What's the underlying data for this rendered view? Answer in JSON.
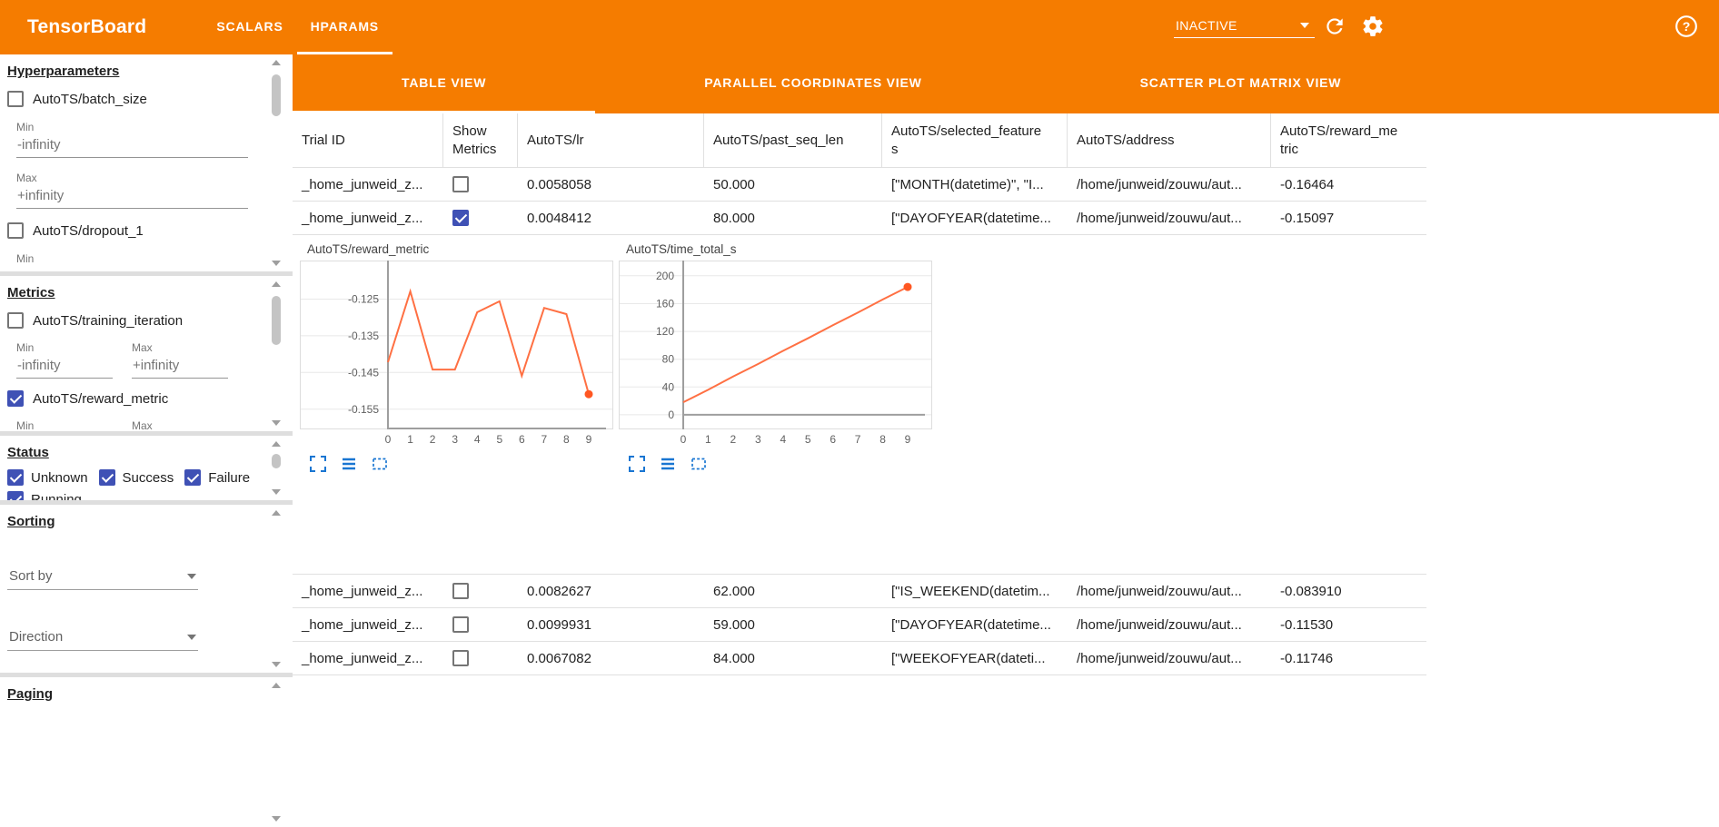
{
  "topbar": {
    "title": "TensorBoard",
    "tabs": [
      {
        "label": "SCALARS",
        "active": false
      },
      {
        "label": "HPARAMS",
        "active": true
      }
    ],
    "reload_mode": "INACTIVE"
  },
  "icons": {
    "help_glyph": "?"
  },
  "colors": {
    "appbar_orange": "#f57c00",
    "checkbox_indigo": "#3f51b5",
    "chart_line_orange": "#ff7043",
    "chart_dot_orange": "#ff5722",
    "control_icon_blue": "#1976d2"
  },
  "sidebar": {
    "hyperparameters": {
      "heading": "Hyperparameters",
      "param1_label": "AutoTS/batch_size",
      "param1_checked": false,
      "min_label": "Min",
      "min_value": "-infinity",
      "max_label": "Max",
      "max_value": "+infinity",
      "param2_label": "AutoTS/dropout_1",
      "param2_checked": false,
      "min2_label": "Min"
    },
    "metrics": {
      "heading": "Metrics",
      "metric1_label": "AutoTS/training_iteration",
      "metric1_checked": false,
      "min_label": "Min",
      "min_value": "-infinity",
      "max_label": "Max",
      "max_value": "+infinity",
      "metric2_label": "AutoTS/reward_metric",
      "metric2_checked": true,
      "min2_label": "Min",
      "max2_label": "Max"
    },
    "status": {
      "heading": "Status",
      "options": [
        {
          "label": "Unknown",
          "checked": true
        },
        {
          "label": "Success",
          "checked": true
        },
        {
          "label": "Failure",
          "checked": true
        },
        {
          "label": "Running",
          "checked": true
        }
      ]
    },
    "sorting": {
      "heading": "Sorting",
      "sort_by_label": "Sort by",
      "direction_label": "Direction"
    },
    "paging": {
      "heading": "Paging"
    }
  },
  "main": {
    "view_tabs": [
      {
        "label": "TABLE VIEW",
        "active": true
      },
      {
        "label": "PARALLEL COORDINATES VIEW",
        "active": false
      },
      {
        "label": "SCATTER PLOT MATRIX VIEW",
        "active": false
      }
    ],
    "table": {
      "columns": [
        "Trial ID",
        "Show Metrics",
        "AutoTS/lr",
        "AutoTS/past_seq_len",
        "AutoTS/selected_features",
        "AutoTS/address",
        "AutoTS/reward_metric"
      ],
      "rows": [
        {
          "trial_id": "_home_junweid_z...",
          "show_metrics": false,
          "lr": "0.0058058",
          "past_seq_len": "50.000",
          "selected_features": "[\"MONTH(datetime)\", \"I...",
          "address": "/home/junweid/zouwu/aut...",
          "reward_metric": "-0.16464"
        },
        {
          "trial_id": "_home_junweid_z...",
          "show_metrics": true,
          "lr": "0.0048412",
          "past_seq_len": "80.000",
          "selected_features": "[\"DAYOFYEAR(datetime...",
          "address": "/home/junweid/zouwu/aut...",
          "reward_metric": "-0.15097"
        },
        {
          "trial_id": "_home_junweid_z...",
          "show_metrics": false,
          "lr": "0.0082627",
          "past_seq_len": "62.000",
          "selected_features": "[\"IS_WEEKEND(datetim...",
          "address": "/home/junweid/zouwu/aut...",
          "reward_metric": "-0.083910"
        },
        {
          "trial_id": "_home_junweid_z...",
          "show_metrics": false,
          "lr": "0.0099931",
          "past_seq_len": "59.000",
          "selected_features": "[\"DAYOFYEAR(datetime...",
          "address": "/home/junweid/zouwu/aut...",
          "reward_metric": "-0.11530"
        },
        {
          "trial_id": "_home_junweid_z...",
          "show_metrics": false,
          "lr": "0.0067082",
          "past_seq_len": "84.000",
          "selected_features": "[\"WEEKOFYEAR(dateti...",
          "address": "/home/junweid/zouwu/aut...",
          "reward_metric": "-0.11746"
        }
      ]
    }
  },
  "chart_data": [
    {
      "type": "line",
      "title": "AutoTS/reward_metric",
      "xlabel": "",
      "ylabel": "",
      "x": [
        0,
        1,
        2,
        3,
        4,
        5,
        6,
        7,
        8,
        9
      ],
      "values": [
        -0.1422,
        -0.1229,
        -0.1442,
        -0.1442,
        -0.1286,
        -0.1256,
        -0.1459,
        -0.1274,
        -0.1291,
        -0.1509
      ],
      "yticks": [
        -0.125,
        -0.135,
        -0.145,
        -0.155
      ],
      "ytick_labels": [
        "-0.125",
        "-0.135",
        "-0.145",
        "-0.155"
      ],
      "ylim": [
        -0.1605,
        -0.1145
      ],
      "xlim": [
        0,
        9
      ],
      "grid": true,
      "legend": "none",
      "line_color": "#ff7043",
      "dot_color": "#ff5722",
      "axis_x": 97,
      "endpoint_dot": true
    },
    {
      "type": "line",
      "title": "AutoTS/time_total_s",
      "xlabel": "",
      "ylabel": "",
      "x": [
        0,
        1,
        2,
        3,
        4,
        5,
        6,
        7,
        8,
        9
      ],
      "values": [
        18,
        36,
        55,
        73,
        92,
        110,
        129,
        147,
        166,
        184
      ],
      "yticks": [
        0,
        40,
        80,
        120,
        160,
        200
      ],
      "ytick_labels": [
        "0",
        "40",
        "80",
        "120",
        "160",
        "200"
      ],
      "ylim": [
        -21,
        222
      ],
      "xlim": [
        0,
        9
      ],
      "grid": true,
      "legend": "none",
      "line_color": "#ff7043",
      "dot_color": "#ff5722",
      "axis_x": 71,
      "endpoint_dot": true
    }
  ]
}
